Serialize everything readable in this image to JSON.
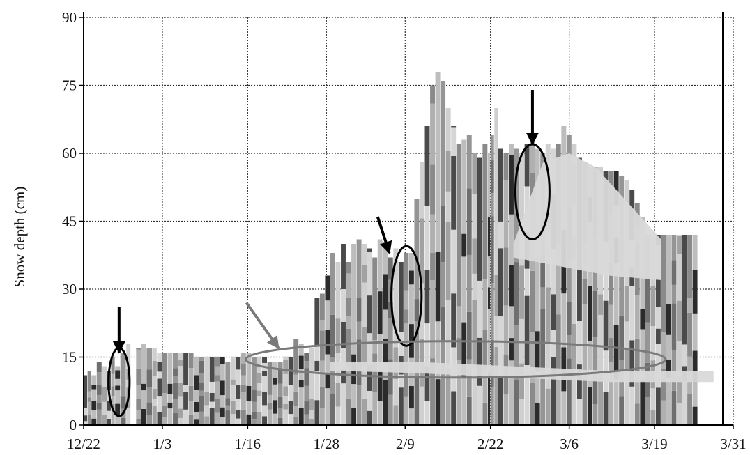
{
  "chart_data": {
    "type": "area",
    "title": "",
    "ylabel": "Snow depth (cm)",
    "xlabel": "",
    "ylim": [
      0,
      90
    ],
    "xlim": [
      0,
      99
    ],
    "y_ticks": [
      0,
      15,
      30,
      45,
      60,
      75,
      90
    ],
    "x_ticks": [
      {
        "label": "12/22",
        "day": 0
      },
      {
        "label": "1/3",
        "day": 12
      },
      {
        "label": "1/16",
        "day": 25
      },
      {
        "label": "1/28",
        "day": 37
      },
      {
        "label": "2/9",
        "day": 49
      },
      {
        "label": "2/22",
        "day": 62
      },
      {
        "label": "3/6",
        "day": 74
      },
      {
        "label": "3/19",
        "day": 87
      },
      {
        "label": "3/31",
        "day": 99
      }
    ],
    "grid": true,
    "grid_style": "dotted",
    "x_unit": "days since 12/22",
    "total_snow_depth": {
      "day": [
        0,
        0.6,
        1.2,
        2,
        2.8,
        3.6,
        4.2,
        4.8,
        5.6,
        6.5,
        7.2,
        8,
        8.8,
        9.6,
        10.5,
        11.2,
        12,
        12.8,
        13.6,
        14.4,
        15.2,
        16,
        16.8,
        17.6,
        18.4,
        19.2,
        20,
        20.8,
        21.6,
        22.4,
        23.2,
        24,
        24.8,
        25.6,
        26.4,
        27.2,
        28,
        28.8,
        29.6,
        30.4,
        31.2,
        32,
        32.8,
        33.6,
        34.4,
        35.2,
        36,
        36.8,
        37.6,
        38.4,
        39.2,
        40,
        40.8,
        41.6,
        42.4,
        43.2,
        44,
        44.8,
        45.6,
        46.4,
        47.2,
        48,
        48.8,
        49.6,
        50.4,
        51.2,
        52,
        52.8,
        53.6,
        54.4,
        55.2,
        56,
        56.8,
        57.6,
        58.4,
        59.2,
        60,
        60.8,
        61.6,
        62,
        62.6,
        63.2,
        64,
        64.8,
        65.6,
        66.4,
        67.2,
        68,
        68.8,
        69.6,
        70.4,
        71.2,
        72,
        72.8,
        73.6,
        74.4,
        75.2,
        76,
        76.8,
        77.6,
        78.4,
        79.2,
        80,
        80.8,
        81.6,
        82.4,
        83.2,
        84,
        84.8,
        85.6,
        86.4,
        87.2,
        88,
        88.8,
        89.6,
        90.4,
        91.2,
        92,
        92.8,
        93.6,
        94.4,
        95.2,
        96,
        96.8,
        97.6,
        98.4,
        99
      ],
      "depth": [
        11,
        12,
        11,
        14,
        13,
        12,
        15,
        13,
        16,
        18,
        0,
        17,
        18,
        17,
        17,
        16,
        16,
        16,
        16,
        16,
        16,
        16,
        15,
        15,
        15,
        15,
        15,
        15,
        14,
        15,
        15,
        16,
        16,
        15,
        15,
        15,
        14,
        14,
        14,
        15,
        15,
        19,
        18,
        16,
        17,
        28,
        29,
        33,
        38,
        36,
        40,
        36,
        40,
        41,
        40,
        39,
        37,
        41,
        40,
        37,
        39,
        36,
        38,
        38,
        50,
        58,
        66,
        75,
        78,
        76,
        70,
        66,
        62,
        63,
        64,
        60,
        59,
        62,
        60,
        64,
        70,
        61,
        60,
        62,
        61,
        60,
        62,
        63,
        61,
        60,
        62,
        61,
        62,
        66,
        64,
        62,
        59,
        58,
        57,
        57,
        57,
        56,
        56,
        56,
        55,
        54,
        52,
        49,
        46,
        42,
        42,
        42,
        42,
        42,
        42,
        42,
        42,
        42,
        42
      ],
      "gaps": [
        [
          9.6,
          10.1
        ],
        [
          98.4,
          98.9
        ]
      ]
    },
    "annotations": [
      {
        "type": "arrow",
        "color": "black",
        "at_day": 5.4,
        "at_depth": 16,
        "from_day": 5.4,
        "from_depth": 26
      },
      {
        "type": "arrow",
        "color": "black",
        "at_day": 46.6,
        "at_depth": 38,
        "from_day": 44.8,
        "from_depth": 46
      },
      {
        "type": "arrow",
        "color": "black",
        "at_day": 68.4,
        "at_depth": 62,
        "from_day": 68.4,
        "from_depth": 74
      },
      {
        "type": "arrow",
        "color": "gray",
        "at_day": 29.7,
        "at_depth": 17,
        "from_day": 24.8,
        "from_depth": 27
      },
      {
        "type": "ellipse",
        "color": "black",
        "center_day": 5.4,
        "center_depth": 9.5,
        "span_days": 3.2,
        "span_depth": 15
      },
      {
        "type": "ellipse",
        "color": "black",
        "center_day": 49.2,
        "center_depth": 28.5,
        "span_days": 4.6,
        "span_depth": 22
      },
      {
        "type": "ellipse",
        "color": "black",
        "center_day": 68.4,
        "center_depth": 51.5,
        "span_days": 5.2,
        "span_depth": 21
      },
      {
        "type": "ellipse",
        "color": "gray",
        "center_day": 56.7,
        "center_depth": 14.5,
        "span_days": 64,
        "span_depth": 8
      }
    ]
  }
}
